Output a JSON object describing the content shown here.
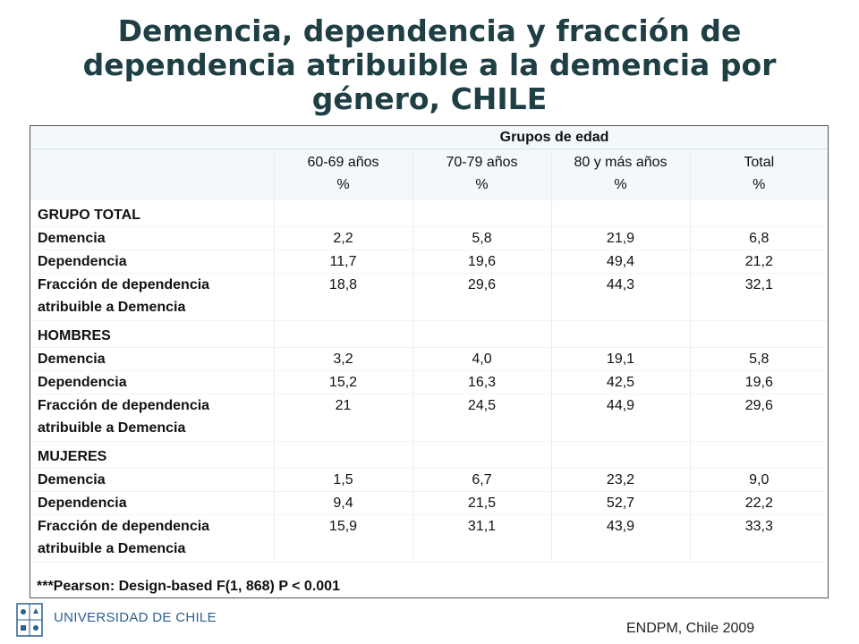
{
  "title": {
    "line1": "Demencia, dependencia y fracción de",
    "line2": "dependencia atribuible a la demencia por",
    "line3": "género, CHILE"
  },
  "table": {
    "group_header": "Grupos de edad",
    "columns": [
      {
        "label": "60-69 años",
        "unit": "%"
      },
      {
        "label": "70-79 años",
        "unit": "%"
      },
      {
        "label": "80 y más años",
        "unit": "%"
      },
      {
        "label": "Total",
        "unit": "%"
      }
    ],
    "sections": [
      {
        "name": "GRUPO TOTAL",
        "rows": [
          {
            "label": "Demencia",
            "values": [
              "2,2",
              "5,8",
              "21,9",
              "6,8"
            ]
          },
          {
            "label": "Dependencia",
            "values": [
              "11,7",
              "19,6",
              "49,4",
              "21,2"
            ]
          },
          {
            "label_line1": "Fracción de dependencia",
            "label_line2": "atribuible a Demencia",
            "values": [
              "18,8",
              "29,6",
              "44,3",
              "32,1"
            ]
          }
        ]
      },
      {
        "name": "HOMBRES",
        "rows": [
          {
            "label": "Demencia",
            "values": [
              "3,2",
              "4,0",
              "19,1",
              "5,8"
            ]
          },
          {
            "label": "Dependencia",
            "values": [
              "15,2",
              "16,3",
              "42,5",
              "19,6"
            ]
          },
          {
            "label_line1": "Fracción de dependencia",
            "label_line2": "atribuible a Demencia",
            "values": [
              "21",
              "24,5",
              "44,9",
              "29,6"
            ]
          }
        ]
      },
      {
        "name": "MUJERES",
        "rows": [
          {
            "label": "Demencia",
            "values": [
              "1,5",
              "6,7",
              "23,2",
              "9,0"
            ]
          },
          {
            "label": "Dependencia",
            "values": [
              "9,4",
              "21,5",
              "52,7",
              "22,2"
            ]
          },
          {
            "label_line1": "Fracción de dependencia",
            "label_line2": "atribuible a Demencia",
            "values": [
              "15,9",
              "31,1",
              "43,9",
              "33,3"
            ]
          }
        ]
      }
    ]
  },
  "footnote": "***Pearson: Design-based  F(1, 868)  P < 0.001",
  "university": "UNIVERSIDAD DE CHILE",
  "source": "ENDPM, Chile  2009",
  "colors": {
    "title": "#1f3f44",
    "band": "#f2f8fb",
    "university": "#2b5f8f"
  }
}
